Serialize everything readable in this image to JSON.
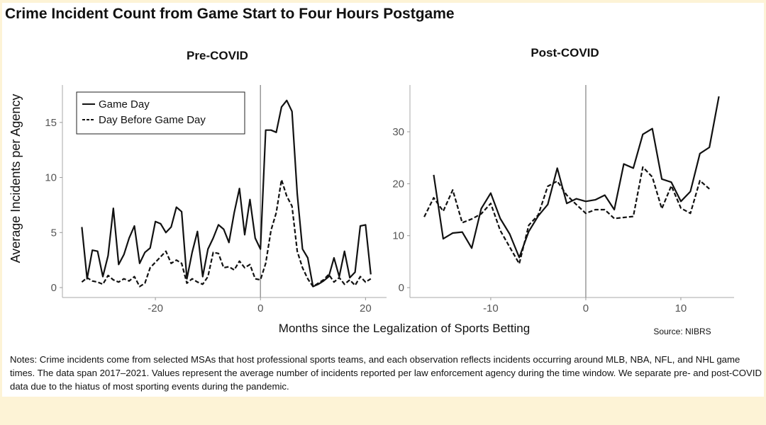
{
  "title": "Crime Incident Count from Game Start to Four Hours Postgame",
  "y_label": "Average Incidents per Agency",
  "x_label": "Months since the Legalization of Sports Betting",
  "source": "Source: NIBRS",
  "notes": "Notes: Crime incidents come from selected MSAs that host professional sports teams, and each observation reflects incidents occurring around MLB, NBA, NFL, and NHL game times. The data span 2017–2021. Values represent the average number of incidents reported per law enforcement agency during the time window. We separate pre- and post-COVID data due to the hiatus of most sporting events during the pandemic.",
  "chart_data": [
    {
      "type": "line",
      "title": "Pre-COVID",
      "xlim": [
        -37.7,
        24
      ],
      "ylim": [
        -0.9,
        18.4
      ],
      "xticks": [
        -20,
        0,
        20
      ],
      "yticks": [
        0,
        5,
        10,
        15
      ],
      "vline": 0,
      "legend": "top-left",
      "series": [
        {
          "name": "Game Day",
          "color": "#111111",
          "style": "solid",
          "x": [
            -34,
            -33,
            -32,
            -31,
            -30,
            -29,
            -28,
            -27,
            -26,
            -25,
            -24,
            -23,
            -22,
            -21,
            -20,
            -19,
            -18,
            -17,
            -16,
            -15,
            -14,
            -13,
            -12,
            -11,
            -10,
            -9,
            -8,
            -7,
            -6,
            -5,
            -4,
            -3,
            -2,
            -1,
            0,
            1,
            2,
            3,
            4,
            5,
            6,
            7,
            8,
            9,
            10,
            11,
            12,
            13,
            14,
            15,
            16,
            17,
            18,
            19,
            20,
            21
          ],
          "values": [
            5.5,
            0.8,
            3.4,
            3.3,
            1.0,
            2.9,
            7.2,
            2.1,
            3.0,
            4.5,
            5.6,
            2.2,
            3.2,
            3.6,
            6.0,
            5.8,
            5.0,
            5.5,
            7.3,
            6.9,
            0.8,
            3.2,
            5.1,
            1.0,
            3.5,
            4.5,
            5.7,
            5.3,
            4.1,
            6.8,
            9.0,
            4.8,
            8.0,
            4.5,
            3.5,
            14.3,
            14.3,
            14.1,
            16.4,
            17.0,
            16.0,
            8.5,
            3.5,
            2.7,
            0.1,
            0.3,
            0.6,
            1.0,
            2.7,
            1.0,
            3.3,
            0.9,
            1.4,
            5.6,
            5.7,
            1.2
          ]
        },
        {
          "name": "Day Before Game Day",
          "color": "#111111",
          "style": "dashed",
          "x": [
            -34,
            -33,
            -32,
            -31,
            -30,
            -29,
            -28,
            -27,
            -26,
            -25,
            -24,
            -23,
            -22,
            -21,
            -20,
            -19,
            -18,
            -17,
            -16,
            -15,
            -14,
            -13,
            -12,
            -11,
            -10,
            -9,
            -8,
            -7,
            -6,
            -5,
            -4,
            -3,
            -2,
            -1,
            0,
            1,
            2,
            3,
            4,
            5,
            6,
            7,
            8,
            9,
            10,
            11,
            12,
            13,
            14,
            15,
            16,
            17,
            18,
            19,
            20,
            21
          ],
          "values": [
            0.5,
            0.9,
            0.6,
            0.5,
            0.3,
            1.1,
            0.7,
            0.5,
            0.8,
            0.6,
            1.0,
            0.1,
            0.4,
            1.8,
            2.3,
            2.8,
            3.3,
            2.2,
            2.5,
            2.2,
            0.4,
            0.8,
            0.5,
            0.3,
            1.0,
            3.2,
            3.1,
            1.8,
            1.9,
            1.6,
            2.4,
            1.8,
            2.1,
            0.8,
            0.7,
            2.2,
            5.2,
            6.8,
            9.8,
            8.3,
            7.4,
            3.3,
            1.8,
            0.8,
            0.1,
            0.4,
            0.7,
            1.2,
            0.5,
            0.9,
            0.3,
            0.7,
            0.2,
            1.0,
            0.5,
            0.8
          ]
        }
      ]
    },
    {
      "type": "line",
      "title": "Post-COVID",
      "xlim": [
        -18.5,
        15.6
      ],
      "ylim": [
        -1.9,
        39
      ],
      "xticks": [
        -10,
        0,
        10
      ],
      "yticks": [
        0,
        10,
        20,
        30
      ],
      "vline": 0,
      "series": [
        {
          "color": "#111111",
          "style": "solid",
          "x": [
            -16,
            -15,
            -14,
            -13,
            -12,
            -11,
            -10,
            -9,
            -8,
            -7,
            -6,
            -5,
            -4,
            -3,
            -2,
            -1,
            0,
            1,
            2,
            3,
            4,
            5,
            6,
            7,
            8,
            9,
            10,
            11,
            12,
            13,
            14
          ],
          "values": [
            21.7,
            9.4,
            10.5,
            10.7,
            7.6,
            15.2,
            18.2,
            13.3,
            10.3,
            5.8,
            10.8,
            13.8,
            16.0,
            23.0,
            16.2,
            17.1,
            16.6,
            16.9,
            17.8,
            15.0,
            23.8,
            23.0,
            29.5,
            30.6,
            20.9,
            20.3,
            16.6,
            18.5,
            25.8,
            27.0,
            36.8
          ]
        },
        {
          "color": "#111111",
          "style": "dashed",
          "x": [
            -17,
            -16,
            -15,
            -14,
            -13,
            -12,
            -11,
            -10,
            -9,
            -8,
            -7,
            -6,
            -5,
            -4,
            -3,
            -2,
            -1,
            0,
            1,
            2,
            3,
            4,
            5,
            6,
            7,
            8,
            9,
            10,
            11,
            12,
            13
          ],
          "values": [
            13.6,
            17.3,
            14.7,
            18.8,
            12.5,
            13.2,
            14.2,
            16.2,
            11.0,
            7.8,
            4.6,
            12.0,
            14.0,
            19.5,
            20.5,
            17.8,
            16.0,
            14.3,
            15.0,
            15.0,
            13.3,
            13.5,
            13.7,
            23.2,
            21.3,
            15.2,
            19.6,
            15.3,
            14.3,
            20.6,
            19.0
          ]
        }
      ]
    }
  ]
}
